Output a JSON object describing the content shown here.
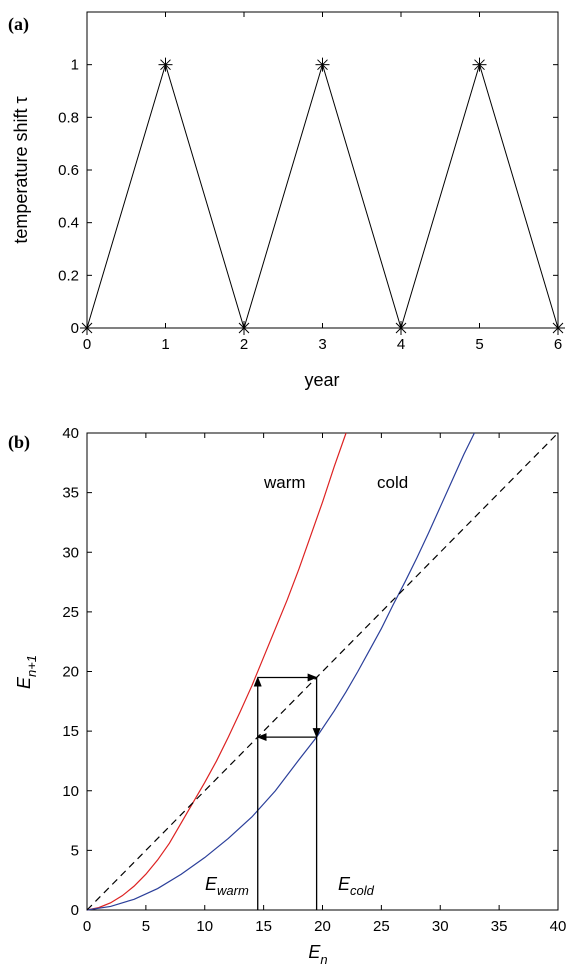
{
  "chart_data": [
    {
      "panel_label": "(a)",
      "type": "line",
      "x": [
        0,
        1,
        2,
        3,
        4,
        5,
        6
      ],
      "series": [
        {
          "values": [
            0,
            1,
            0,
            1,
            0,
            1,
            0
          ],
          "color": "#000000",
          "marker": "asterisk"
        }
      ],
      "xlabel": "year",
      "ylabel": "temperature shift τ",
      "xlim": [
        0,
        6
      ],
      "ylim": [
        0,
        1.2
      ],
      "xticks": [
        "0",
        "1",
        "2",
        "3",
        "4",
        "5",
        "6"
      ],
      "yticks": [
        "0",
        "0.2",
        "0.4",
        "0.6",
        "0.8",
        "1"
      ],
      "yticks_values": [
        0,
        0.2,
        0.4,
        0.6,
        0.8,
        1
      ],
      "grid": false
    },
    {
      "panel_label": "(b)",
      "type": "line",
      "xlabel": "E",
      "xlabel_sub": "n",
      "ylabel": "E",
      "ylabel_sub": "n+1",
      "xlim": [
        0,
        40
      ],
      "ylim": [
        0,
        40
      ],
      "xticks": [
        "0",
        "5",
        "10",
        "15",
        "20",
        "25",
        "30",
        "35",
        "40"
      ],
      "yticks": [
        "0",
        "5",
        "10",
        "15",
        "20",
        "25",
        "30",
        "35",
        "40"
      ],
      "grid": false,
      "series": [
        {
          "name": "warm",
          "color": "#dd2222",
          "x": [
            0,
            1,
            2,
            3,
            4,
            5,
            6,
            7,
            8,
            9,
            10,
            11,
            12,
            13,
            14,
            15,
            16,
            17,
            18,
            19,
            20,
            21,
            22
          ],
          "y": [
            0,
            0.2,
            0.6,
            1.2,
            2.0,
            3.0,
            4.2,
            5.6,
            7.3,
            9.0,
            10.7,
            12.5,
            14.5,
            16.6,
            18.8,
            21.2,
            23.6,
            26.0,
            28.6,
            31.4,
            34.2,
            37.2,
            40.2
          ]
        },
        {
          "name": "cold",
          "color": "#2b3f9a",
          "x": [
            0,
            2,
            4,
            6,
            8,
            10,
            12,
            14,
            16,
            18,
            19.5,
            21,
            22,
            23,
            24,
            25,
            26,
            27,
            28,
            29,
            30,
            31,
            32,
            32.9
          ],
          "y": [
            0,
            0.3,
            0.9,
            1.8,
            3.0,
            4.4,
            6.0,
            7.8,
            10.0,
            12.6,
            14.5,
            16.7,
            18.3,
            20.0,
            21.8,
            23.6,
            25.6,
            27.5,
            29.5,
            31.6,
            33.8,
            36.0,
            38.2,
            40.0
          ]
        },
        {
          "name": "identity",
          "color": "#000000",
          "dashed": true,
          "x": [
            0,
            40
          ],
          "y": [
            0,
            40
          ]
        }
      ],
      "annotations": [
        {
          "text": "E",
          "sub": "warm",
          "x": 14.5,
          "y": 0
        },
        {
          "text": "E",
          "sub": "cold",
          "x": 19.5,
          "y": 0
        }
      ],
      "points": {
        "e_warm": 14.5,
        "e_cold": 19.5,
        "f_warm_at_warm": 19.5,
        "f_cold_at_cold": 14.5
      }
    }
  ]
}
